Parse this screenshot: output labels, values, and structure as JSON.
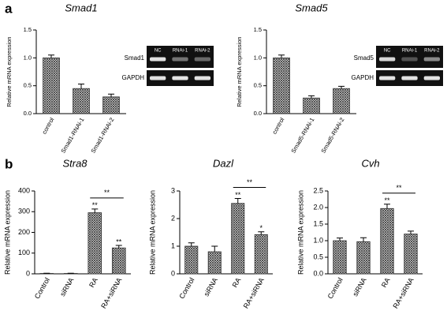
{
  "chart_data": [
    {
      "type": "bar",
      "panel": "a",
      "title": "Smad1",
      "ylabel": "Relative mRNA expression",
      "categories": [
        "control",
        "Smad1-RNAi-1",
        "Smad1-RNAi-2"
      ],
      "values": [
        1.0,
        0.45,
        0.3
      ],
      "errors": [
        0.05,
        0.08,
        0.05
      ],
      "color": "#333333",
      "ylim": [
        0,
        1.5
      ],
      "yticks": [
        {
          "value": 0,
          "label": "0.0"
        },
        {
          "value": 0.5,
          "label": "0.5"
        },
        {
          "value": 1,
          "label": "1.0"
        },
        {
          "value": 1.5,
          "label": "1.5"
        }
      ],
      "gel": {
        "lanes": [
          "NC",
          "RNAi-1",
          "RNAi-2"
        ],
        "rows": [
          "Smad1",
          "GAPDH"
        ]
      }
    },
    {
      "type": "bar",
      "title": "Smad5",
      "ylabel": "Relative mRNA expression",
      "categories": [
        "control",
        "Smad5-RNAi-1",
        "Smad5-RNAi-2"
      ],
      "values": [
        1.0,
        0.28,
        0.45
      ],
      "errors": [
        0.05,
        0.04,
        0.04
      ],
      "color": "#333333",
      "ylim": [
        0,
        1.5
      ],
      "yticks": [
        {
          "value": 0,
          "label": "0.0"
        },
        {
          "value": 0.5,
          "label": "0.5"
        },
        {
          "value": 1,
          "label": "1.0"
        },
        {
          "value": 1.5,
          "label": "1.5"
        }
      ],
      "gel": {
        "lanes": [
          "NC",
          "RNAi-1",
          "RNAi-2"
        ],
        "rows": [
          "Smad5",
          "GAPDH"
        ]
      }
    },
    {
      "type": "bar",
      "panel": "b",
      "title": "Stra8",
      "ylabel": "Relative mRNA expression",
      "categories": [
        "Control",
        "siRNA",
        "RA",
        "RA+siRNA"
      ],
      "values": [
        2,
        2,
        295,
        125
      ],
      "errors": [
        1,
        1,
        18,
        12
      ],
      "color": "#333333",
      "ylim": [
        0,
        400
      ],
      "yticks": [
        0,
        100,
        200,
        300,
        400
      ],
      "annotations": [
        {
          "index": 2,
          "text": "**"
        },
        {
          "index": 3,
          "text": "**"
        }
      ],
      "comparisons": [
        {
          "from": 2,
          "to": 3,
          "text": "**"
        }
      ]
    },
    {
      "type": "bar",
      "title": "Dazl",
      "ylabel": "Relative mRNA expression",
      "categories": [
        "Control",
        "siRNA",
        "RA",
        "RA+siRNA"
      ],
      "values": [
        1.0,
        0.8,
        2.55,
        1.42
      ],
      "errors": [
        0.12,
        0.2,
        0.18,
        0.1
      ],
      "color": "#333333",
      "ylim": [
        0,
        3
      ],
      "yticks": [
        0,
        1,
        2,
        3
      ],
      "annotations": [
        {
          "index": 2,
          "text": "**"
        },
        {
          "index": 3,
          "text": "*"
        }
      ],
      "comparisons": [
        {
          "from": 2,
          "to": 3,
          "text": "**"
        }
      ]
    },
    {
      "type": "bar",
      "title": "Cvh",
      "ylabel": "Relative mRNA expression",
      "categories": [
        "Control",
        "siRNA",
        "RA",
        "RA+siRNA"
      ],
      "values": [
        1.0,
        0.97,
        1.97,
        1.2
      ],
      "errors": [
        0.08,
        0.12,
        0.13,
        0.09
      ],
      "color": "#333333",
      "ylim": [
        0,
        2.5
      ],
      "yticks": [
        {
          "value": 0,
          "label": "0.0"
        },
        {
          "value": 0.5,
          "label": "0.5"
        },
        {
          "value": 1,
          "label": "1.0"
        },
        {
          "value": 1.5,
          "label": "1.5"
        },
        {
          "value": 2,
          "label": "2.0"
        },
        {
          "value": 2.5,
          "label": "2.5"
        }
      ],
      "annotations": [
        {
          "index": 2,
          "text": "**"
        }
      ],
      "comparisons": [
        {
          "from": 2,
          "to": 3,
          "text": "**"
        }
      ]
    }
  ]
}
